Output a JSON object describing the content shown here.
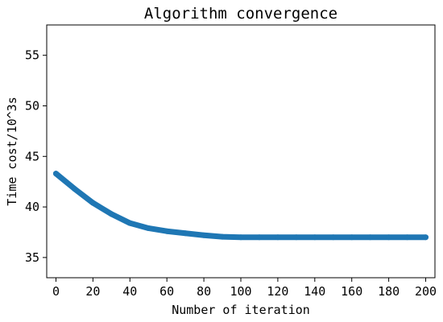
{
  "chart_data": {
    "type": "line",
    "title": "Algorithm convergence",
    "xlabel": "Number of iteration",
    "ylabel": "Time cost/10^3s",
    "xlim": [
      -5,
      205
    ],
    "ylim": [
      33,
      58
    ],
    "xticks": [
      0,
      20,
      40,
      60,
      80,
      100,
      120,
      140,
      160,
      180,
      200
    ],
    "yticks": [
      35,
      40,
      45,
      50,
      55
    ],
    "grid": false,
    "series": [
      {
        "color": "#1f77b4",
        "x": [
          0,
          10,
          20,
          30,
          40,
          50,
          60,
          70,
          80,
          90,
          100,
          110,
          120,
          130,
          140,
          150,
          160,
          170,
          180,
          190,
          200
        ],
        "y": [
          43.3,
          41.8,
          40.4,
          39.3,
          38.4,
          37.9,
          37.6,
          37.4,
          37.2,
          37.05,
          37.0,
          37.0,
          37.0,
          37.0,
          37.0,
          37.0,
          37.0,
          37.0,
          37.0,
          37.0,
          37.0
        ]
      }
    ]
  }
}
